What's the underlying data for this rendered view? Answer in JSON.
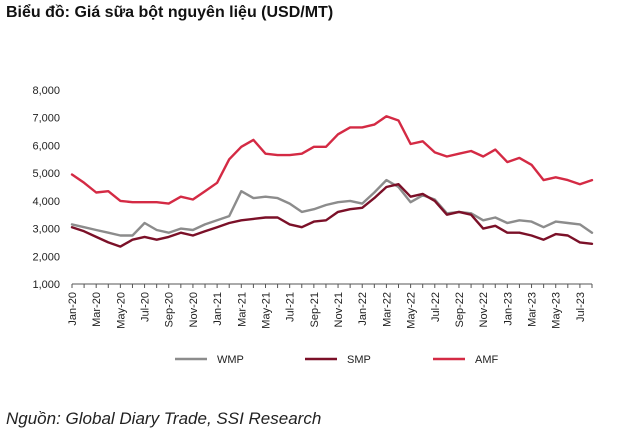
{
  "title": "Biểu đồ: Giá sữa bột nguyên liệu (USD/MT)",
  "source": "Nguồn: Global Diary Trade, SSI Research",
  "chart_data": {
    "type": "line",
    "title": "Biểu đồ: Giá sữa bột nguyên liệu (USD/MT)",
    "xlabel": "",
    "ylabel": "",
    "ylim": [
      1000,
      8000
    ],
    "yticks": [
      "1,000",
      "2,000",
      "3,000",
      "4,000",
      "5,000",
      "6,000",
      "7,000",
      "8,000"
    ],
    "ytick_values": [
      1000,
      2000,
      3000,
      4000,
      5000,
      6000,
      7000,
      8000
    ],
    "x": [
      "Jan-20",
      "Feb-20",
      "Mar-20",
      "Apr-20",
      "May-20",
      "Jun-20",
      "Jul-20",
      "Aug-20",
      "Sep-20",
      "Oct-20",
      "Nov-20",
      "Dec-20",
      "Jan-21",
      "Feb-21",
      "Mar-21",
      "Apr-21",
      "May-21",
      "Jun-21",
      "Jul-21",
      "Aug-21",
      "Sep-21",
      "Oct-21",
      "Nov-21",
      "Dec-21",
      "Jan-22",
      "Feb-22",
      "Mar-22",
      "Apr-22",
      "May-22",
      "Jun-22",
      "Jul-22",
      "Aug-22",
      "Sep-22",
      "Oct-22",
      "Nov-22",
      "Dec-22",
      "Jan-23",
      "Feb-23",
      "Mar-23",
      "Apr-23",
      "May-23",
      "Jun-23",
      "Jul-23",
      "Aug-23"
    ],
    "xtick_labels": [
      "Jan-20",
      "Mar-20",
      "May-20",
      "Jul-20",
      "Sep-20",
      "Nov-20",
      "Jan-21",
      "Mar-21",
      "May-21",
      "Jul-21",
      "Sep-21",
      "Nov-21",
      "Jan-22",
      "Mar-22",
      "May-22",
      "Jul-22",
      "Sep-22",
      "Nov-22",
      "Jan-23",
      "Mar-23",
      "May-23",
      "Jul-23"
    ],
    "series": [
      {
        "name": "WMP",
        "color": "#8c8c8c",
        "values": [
          3150,
          3050,
          2950,
          2850,
          2750,
          2750,
          3200,
          2950,
          2850,
          3000,
          2950,
          3150,
          3300,
          3450,
          4350,
          4100,
          4150,
          4100,
          3900,
          3600,
          3700,
          3850,
          3950,
          4000,
          3900,
          4300,
          4750,
          4500,
          3950,
          4200,
          4050,
          3550,
          3600,
          3550,
          3300,
          3400,
          3200,
          3300,
          3250,
          3050,
          3250,
          3200,
          3150,
          2850
        ]
      },
      {
        "name": "SMP",
        "color": "#7b1028",
        "values": [
          3050,
          2900,
          2700,
          2500,
          2350,
          2600,
          2700,
          2600,
          2700,
          2850,
          2750,
          2900,
          3050,
          3200,
          3300,
          3350,
          3400,
          3400,
          3150,
          3050,
          3250,
          3300,
          3600,
          3700,
          3750,
          4100,
          4500,
          4600,
          4150,
          4250,
          4000,
          3500,
          3600,
          3500,
          3000,
          3100,
          2850,
          2850,
          2750,
          2600,
          2800,
          2750,
          2500,
          2450
        ]
      },
      {
        "name": "AMF",
        "color": "#d42a44",
        "values": [
          4950,
          4650,
          4300,
          4350,
          4000,
          3950,
          3950,
          3950,
          3900,
          4150,
          4050,
          4350,
          4650,
          5500,
          5950,
          6200,
          5700,
          5650,
          5650,
          5700,
          5950,
          5950,
          6400,
          6650,
          6650,
          6750,
          7050,
          6900,
          6050,
          6150,
          5750,
          5600,
          5700,
          5800,
          5600,
          5850,
          5400,
          5550,
          5300,
          4750,
          4850,
          4750,
          4600,
          4750
        ]
      }
    ],
    "legend": "bottom",
    "grid": false
  }
}
